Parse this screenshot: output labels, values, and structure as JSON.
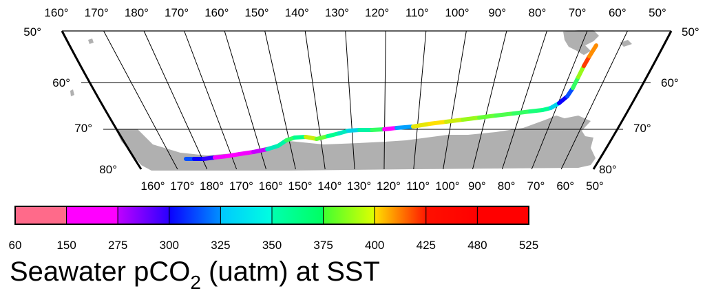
{
  "map": {
    "top_lon_labels": [
      "160°",
      "170°",
      "180°",
      "170°",
      "160°",
      "150°",
      "140°",
      "130°",
      "120°",
      "110°",
      "100°",
      "90°",
      "80°",
      "70°",
      "60°",
      "50°"
    ],
    "bottom_lon_labels": [
      "160°",
      "170°",
      "180°",
      "170°",
      "160°",
      "150°",
      "140°",
      "130°",
      "120°",
      "110°",
      "100°",
      "90°",
      "80°",
      "70°",
      "60°",
      "50°"
    ],
    "left_lat_labels": [
      "50°",
      "60°",
      "70°",
      "80°"
    ],
    "right_lat_labels": [
      "50°",
      "60°",
      "70°",
      "80°"
    ],
    "colors": {
      "land": "#b0b0b0",
      "frame": "#000000",
      "grid": "#000000"
    }
  },
  "track": {
    "description_values_uatm": [
      310,
      300,
      290,
      160,
      150,
      160,
      200,
      340,
      345,
      360,
      350,
      390,
      370,
      350,
      340,
      330,
      345,
      360,
      150,
      320,
      395,
      400,
      390,
      380,
      370,
      365,
      360,
      355,
      350,
      330,
      300,
      310,
      360,
      380,
      420,
      410,
      370
    ]
  },
  "colorbar": {
    "ticks": [
      "60",
      "150",
      "275",
      "300",
      "325",
      "350",
      "375",
      "400",
      "425",
      "480",
      "525"
    ],
    "segment_colors": [
      [
        "#ff6a8a",
        "#ff6a8a"
      ],
      [
        "#ff00ff",
        "#ff00ff"
      ],
      [
        "#c000ff",
        "#2a00ff"
      ],
      [
        "#0a00ff",
        "#0090ff"
      ],
      [
        "#00c8ff",
        "#00ffe0"
      ],
      [
        "#00ffb0",
        "#00ff60"
      ],
      [
        "#40ff30",
        "#e0ff00"
      ],
      [
        "#ffe000",
        "#ff1800"
      ],
      [
        "#ff1000",
        "#ff0000"
      ],
      [
        "#ff0000",
        "#ff0000"
      ]
    ]
  },
  "title": {
    "main": "Seawater pCO",
    "sub": "2",
    "rest": " (uatm) at SST"
  }
}
